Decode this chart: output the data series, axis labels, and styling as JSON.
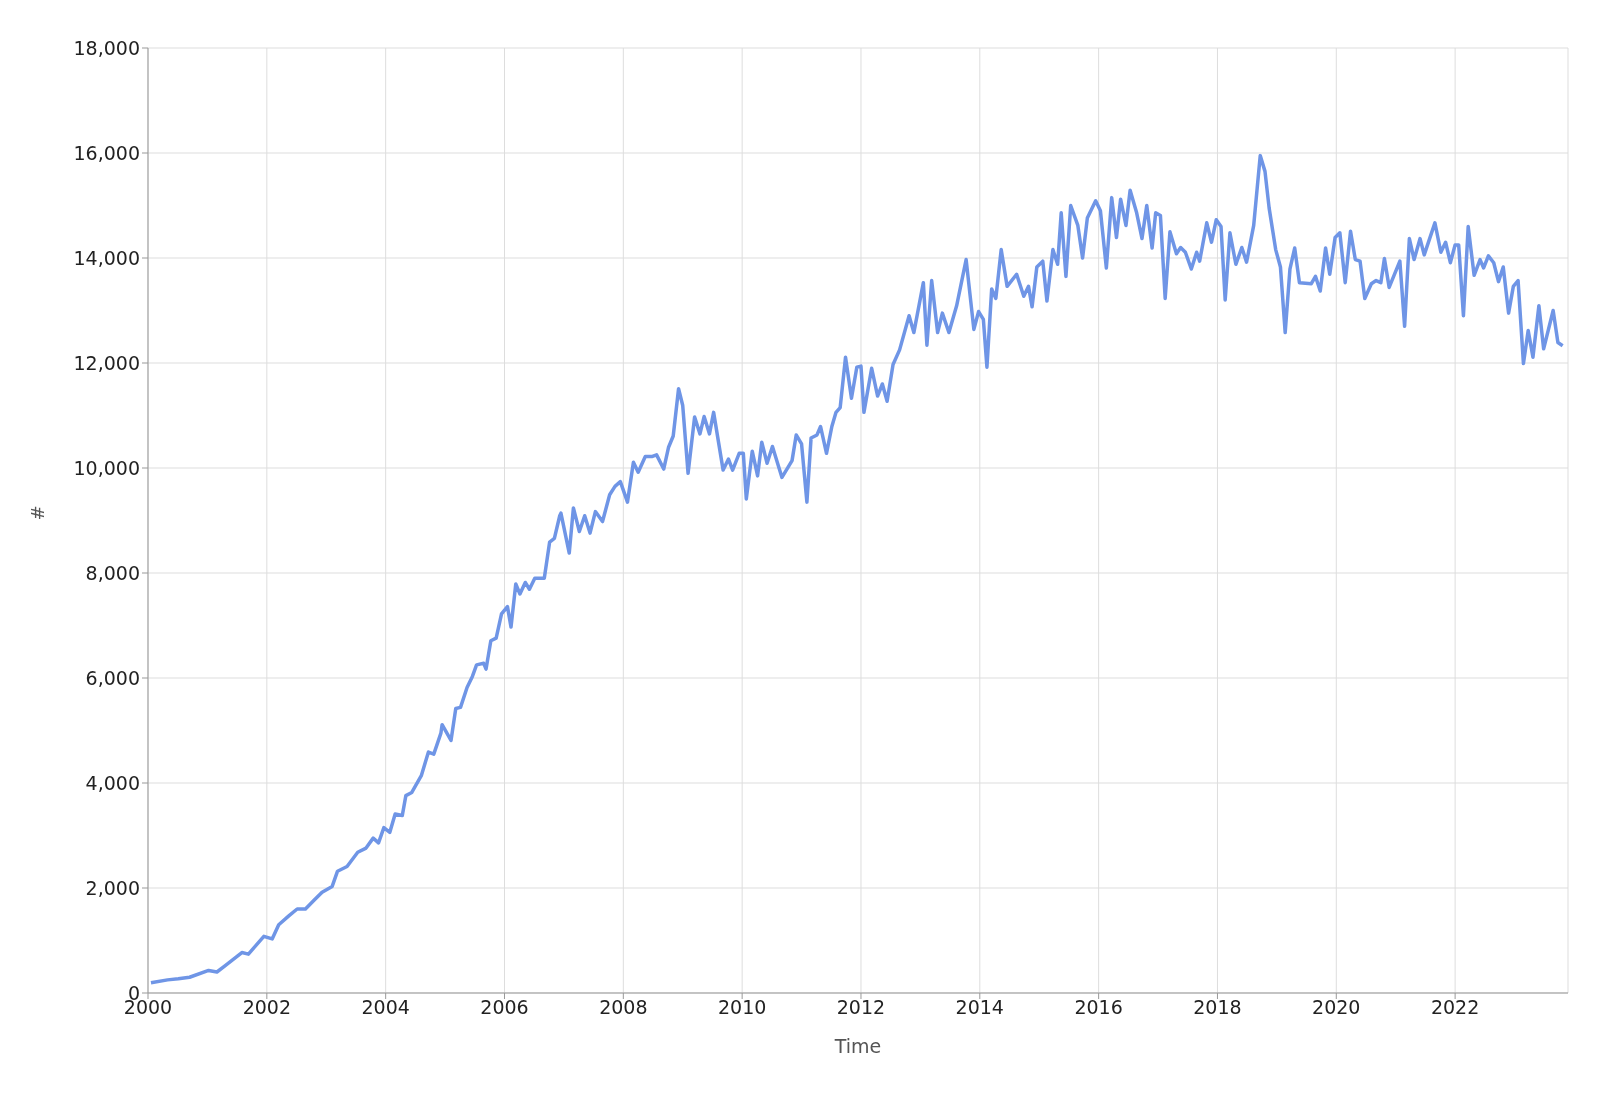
{
  "chart_data": {
    "type": "line",
    "xlabel": "Time",
    "ylabel": "#",
    "grid": true,
    "legend": false,
    "marker": "none",
    "line_style": "solid",
    "xlim": [
      2000,
      2023.9
    ],
    "xticks": [
      2000,
      2002,
      2004,
      2006,
      2008,
      2010,
      2012,
      2014,
      2016,
      2018,
      2020,
      2022
    ],
    "ylim": [
      0,
      18000
    ],
    "yticks": [
      {
        "value": 0,
        "label": "0"
      },
      {
        "value": 2000,
        "label": "2,000"
      },
      {
        "value": 4000,
        "label": "4,000"
      },
      {
        "value": 6000,
        "label": "6,000"
      },
      {
        "value": 8000,
        "label": "8,000"
      },
      {
        "value": 10000,
        "label": "10,000"
      },
      {
        "value": 12000,
        "label": "12,000"
      },
      {
        "value": 14000,
        "label": "14,000"
      },
      {
        "value": 16000,
        "label": "16,000"
      },
      {
        "value": 18000,
        "label": "18,000"
      }
    ],
    "series": [
      {
        "color": "#6f95e6",
        "x": [
          2000.05,
          2000.33,
          2000.51,
          2000.7,
          2001.02,
          2001.16,
          2001.3,
          2001.58,
          2001.69,
          2001.95,
          2002.09,
          2002.2,
          2002.37,
          2002.51,
          2002.65,
          2002.79,
          2002.93,
          2003.1,
          2003.19,
          2003.35,
          2003.53,
          2003.67,
          2003.79,
          2003.88,
          2003.97,
          2004.07,
          2004.16,
          2004.28,
          2004.34,
          2004.44,
          2004.6,
          2004.72,
          2004.81,
          2004.93,
          2004.95,
          2005.1,
          2005.18,
          2005.26,
          2005.37,
          2005.46,
          2005.53,
          2005.65,
          2005.69,
          2005.77,
          2005.86,
          2005.95,
          2006.05,
          2006.11,
          2006.19,
          2006.26,
          2006.35,
          2006.42,
          2006.51,
          2006.67,
          2006.76,
          2006.84,
          2006.93,
          2006.95,
          2007.09,
          2007.16,
          2007.26,
          2007.35,
          2007.44,
          2007.53,
          2007.65,
          2007.77,
          2007.86,
          2007.95,
          2008.07,
          2008.17,
          2008.25,
          2008.37,
          2008.49,
          2008.56,
          2008.68,
          2008.76,
          2008.84,
          2008.93,
          2009.0,
          2009.09,
          2009.2,
          2009.29,
          2009.36,
          2009.45,
          2009.52,
          2009.68,
          2009.77,
          2009.84,
          2009.95,
          2010.02,
          2010.07,
          2010.17,
          2010.26,
          2010.33,
          2010.42,
          2010.51,
          2010.67,
          2010.84,
          2010.91,
          2011.0,
          2011.09,
          2011.16,
          2011.26,
          2011.32,
          2011.42,
          2011.51,
          2011.58,
          2011.65,
          2011.74,
          2011.84,
          2011.93,
          2012.0,
          2012.05,
          2012.18,
          2012.28,
          2012.36,
          2012.44,
          2012.54,
          2012.65,
          2012.81,
          2012.89,
          2013.05,
          2013.11,
          2013.19,
          2013.29,
          2013.37,
          2013.48,
          2013.61,
          2013.77,
          2013.9,
          2013.98,
          2014.06,
          2014.12,
          2014.2,
          2014.27,
          2014.36,
          2014.46,
          2014.62,
          2014.74,
          2014.82,
          2014.88,
          2014.96,
          2015.06,
          2015.13,
          2015.23,
          2015.31,
          2015.37,
          2015.45,
          2015.53,
          2015.65,
          2015.73,
          2015.81,
          2015.95,
          2016.03,
          2016.13,
          2016.22,
          2016.3,
          2016.37,
          2016.46,
          2016.53,
          2016.64,
          2016.73,
          2016.81,
          2016.9,
          2016.96,
          2017.04,
          2017.12,
          2017.2,
          2017.31,
          2017.38,
          2017.46,
          2017.56,
          2017.65,
          2017.7,
          2017.82,
          2017.9,
          2017.98,
          2018.06,
          2018.13,
          2018.21,
          2018.31,
          2018.41,
          2018.49,
          2018.61,
          2018.72,
          2018.8,
          2018.87,
          2018.98,
          2019.06,
          2019.14,
          2019.22,
          2019.3,
          2019.38,
          2019.58,
          2019.65,
          2019.73,
          2019.82,
          2019.89,
          2019.98,
          2020.06,
          2020.15,
          2020.24,
          2020.32,
          2020.4,
          2020.48,
          2020.59,
          2020.67,
          2020.75,
          2020.81,
          2020.89,
          2021.07,
          2021.15,
          2021.23,
          2021.31,
          2021.41,
          2021.48,
          2021.66,
          2021.76,
          2021.84,
          2021.92,
          2022.0,
          2022.06,
          2022.14,
          2022.22,
          2022.32,
          2022.42,
          2022.48,
          2022.56,
          2022.65,
          2022.73,
          2022.81,
          2022.9,
          2022.98,
          2023.06,
          2023.15,
          2023.23,
          2023.31,
          2023.41,
          2023.49,
          2023.65,
          2023.73,
          2023.81
        ],
        "values": [
          195,
          250,
          270,
          300,
          430,
          400,
          520,
          770,
          740,
          1080,
          1030,
          1300,
          1470,
          1600,
          1600,
          1760,
          1920,
          2030,
          2320,
          2410,
          2680,
          2760,
          2950,
          2860,
          3150,
          3060,
          3410,
          3380,
          3760,
          3820,
          4140,
          4590,
          4550,
          4950,
          5110,
          4810,
          5420,
          5440,
          5820,
          6030,
          6250,
          6280,
          6170,
          6710,
          6760,
          7220,
          7360,
          6970,
          7790,
          7600,
          7820,
          7690,
          7900,
          7900,
          8590,
          8660,
          9090,
          9140,
          8380,
          9240,
          8790,
          9090,
          8760,
          9170,
          8980,
          9490,
          9650,
          9740,
          9350,
          10110,
          9920,
          10220,
          10220,
          10250,
          9980,
          10390,
          10610,
          11510,
          11190,
          9900,
          10970,
          10650,
          10980,
          10650,
          11060,
          9960,
          10170,
          9960,
          10280,
          10280,
          9410,
          10320,
          9850,
          10490,
          10090,
          10410,
          9820,
          10140,
          10630,
          10460,
          9350,
          10570,
          10630,
          10790,
          10280,
          10790,
          11060,
          11150,
          12110,
          11330,
          11920,
          11940,
          11060,
          11900,
          11370,
          11600,
          11270,
          11970,
          12250,
          12900,
          12580,
          13530,
          12340,
          13570,
          12580,
          12950,
          12580,
          13090,
          13970,
          12640,
          12980,
          12830,
          11920,
          13410,
          13230,
          14160,
          13460,
          13690,
          13270,
          13460,
          13070,
          13830,
          13940,
          13180,
          14160,
          13880,
          14860,
          13650,
          15000,
          14620,
          14000,
          14760,
          15090,
          14900,
          13810,
          15150,
          14390,
          15120,
          14620,
          15290,
          14860,
          14370,
          15000,
          14190,
          14860,
          14810,
          13230,
          14500,
          14080,
          14200,
          14110,
          13790,
          14110,
          13940,
          14670,
          14300,
          14730,
          14600,
          13200,
          14480,
          13880,
          14200,
          13920,
          14620,
          15950,
          15650,
          14950,
          14160,
          13830,
          12580,
          13790,
          14190,
          13530,
          13510,
          13650,
          13370,
          14190,
          13690,
          14390,
          14480,
          13530,
          14510,
          13970,
          13940,
          13230,
          13510,
          13570,
          13530,
          13990,
          13440,
          13940,
          12700,
          14370,
          13970,
          14370,
          14060,
          14670,
          14110,
          14300,
          13910,
          14250,
          14250,
          12900,
          14600,
          13670,
          13970,
          13810,
          14040,
          13910,
          13550,
          13830,
          12950,
          13460,
          13570,
          11990,
          12620,
          12110,
          13090,
          12270,
          13000,
          12390,
          12330
        ]
      }
    ]
  }
}
